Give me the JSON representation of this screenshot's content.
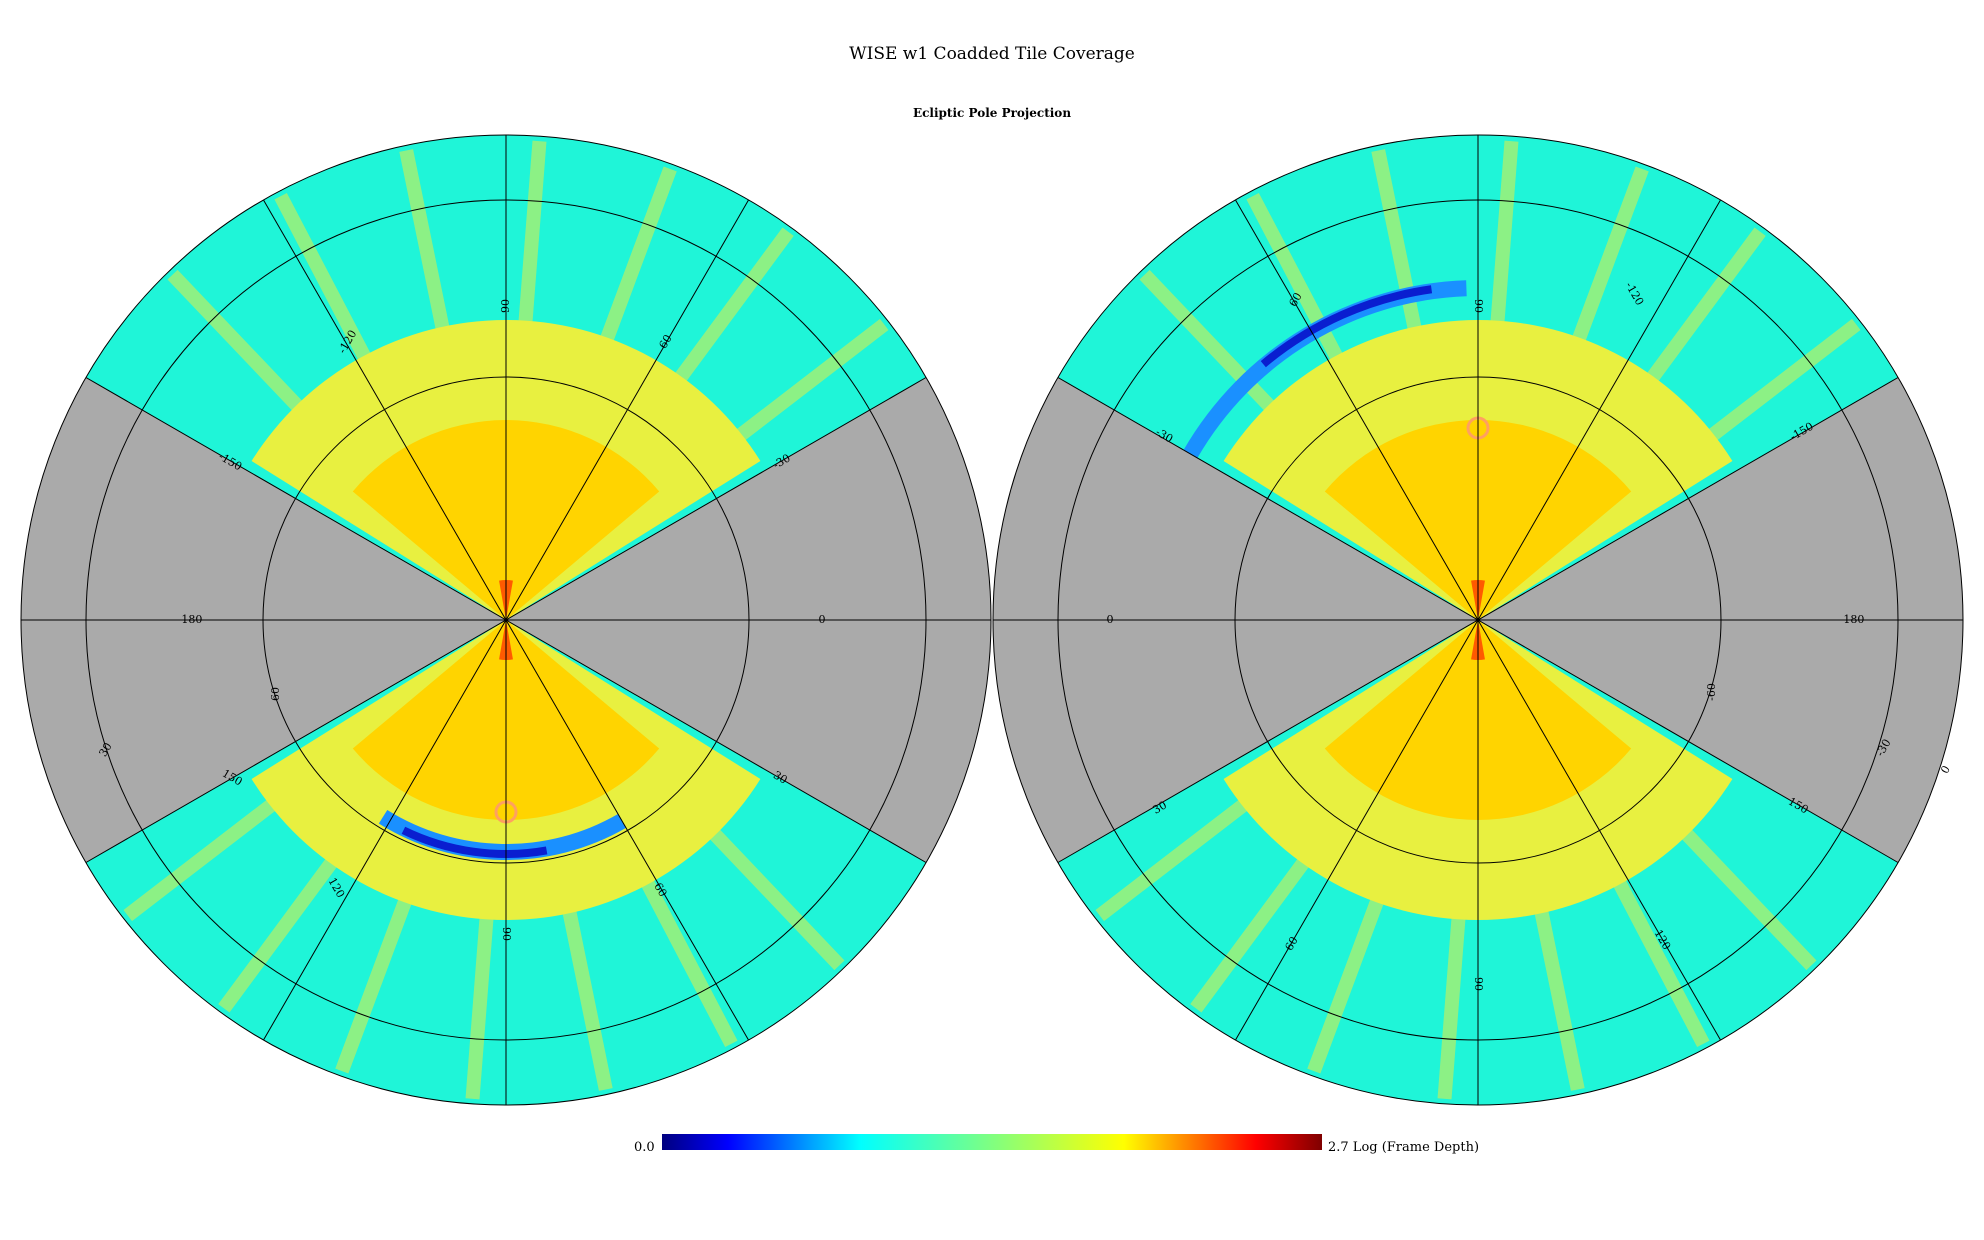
{
  "title": "WISE w1 Coadded Tile Coverage",
  "subtitle": "Ecliptic Pole Projection",
  "colorbar": {
    "min_label": "0.0",
    "max_label": "2.7 Log (Frame Depth)",
    "colors": [
      "#00007f",
      "#0000ff",
      "#0080ff",
      "#00ffff",
      "#40ffc0",
      "#80ff80",
      "#c0ff40",
      "#ffff00",
      "#ff8000",
      "#ff0000",
      "#7f0000"
    ]
  },
  "colors": {
    "no_coverage": "#aaaaaa",
    "base_coverage": "#1ff5d8",
    "stripe": "#a8f070",
    "mid": "#e8f040",
    "high": "#ffd400",
    "very_high": "#ff5a00",
    "low_a": "#1a90ff",
    "low_b": "#0a1ed0"
  },
  "hemispheres": [
    {
      "name": "left",
      "labels": [
        {
          "text": "-180",
          "rot": 0
        },
        {
          "text": "0",
          "rot": 0
        },
        {
          "text": "90",
          "rot": -90
        },
        {
          "text": "60",
          "rot": -60
        },
        {
          "text": "-120",
          "rot": -60
        },
        {
          "text": "-150",
          "rot": 30
        },
        {
          "text": "-30",
          "rot": -30
        },
        {
          "text": "60",
          "rot": -90
        },
        {
          "text": "30",
          "rot": -60
        },
        {
          "text": "150",
          "rot": 30
        },
        {
          "text": "90",
          "rot": 90
        },
        {
          "text": "120",
          "rot": 60
        },
        {
          "text": "60",
          "rot": 60
        },
        {
          "text": "30",
          "rot": 30
        }
      ]
    },
    {
      "name": "right",
      "labels": [
        {
          "text": "0",
          "rot": 0
        },
        {
          "text": "-180",
          "rot": 0
        },
        {
          "text": "90",
          "rot": 90
        },
        {
          "text": "-120",
          "rot": 60
        },
        {
          "text": "60",
          "rot": -60
        },
        {
          "text": "-150",
          "rot": -30
        },
        {
          "text": "-30",
          "rot": 30
        },
        {
          "text": "-60",
          "rot": -90
        },
        {
          "text": "-30",
          "rot": -60
        },
        {
          "text": "150",
          "rot": 30
        },
        {
          "text": "90",
          "rot": 90
        },
        {
          "text": "60",
          "rot": -60
        },
        {
          "text": "120",
          "rot": 60
        },
        {
          "text": "30",
          "rot": -30
        },
        {
          "text": "0",
          "rot": -60
        }
      ]
    }
  ]
}
